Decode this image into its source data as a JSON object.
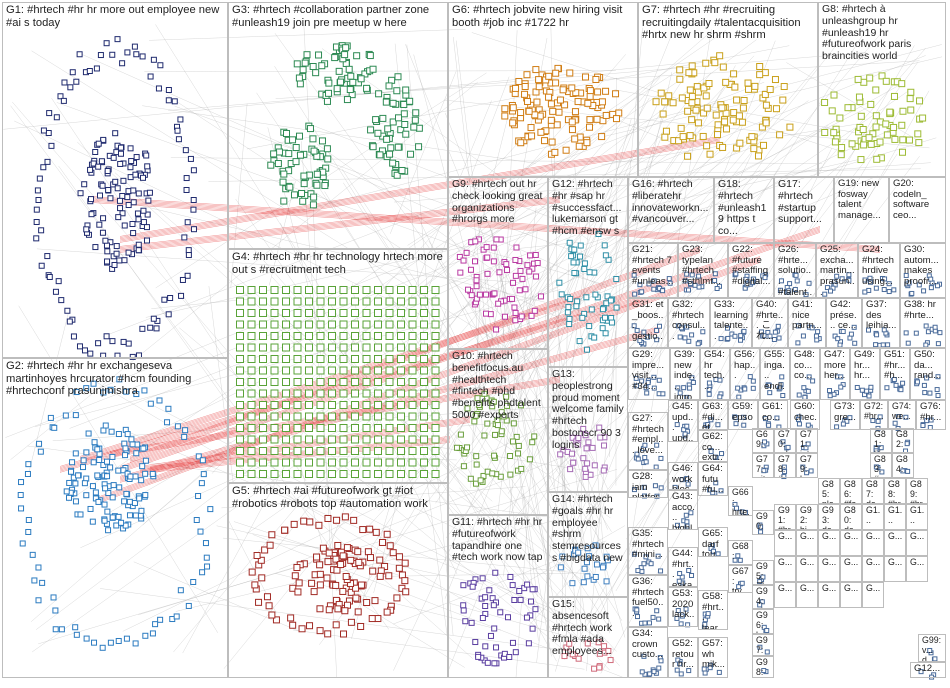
{
  "colors": {
    "G1": "#1f2a6e",
    "G2": "#2b7bc0",
    "G3": "#2d8a53",
    "G4": "#5aa338",
    "G5": "#a12a24",
    "G6": "#d07d14",
    "G7": "#c9a01a",
    "G8": "#9dbb34",
    "G9": "#b93aa2",
    "G10": "#6a9e3c",
    "G11": "#5a3ea0",
    "G12": "#2f8fa6",
    "G13": "#a56bb5",
    "G14": "#3f7fbf",
    "G15": "#d06a7a",
    "edge": "#9a9a9a",
    "bridge": "#e01010"
  },
  "groups": [
    {
      "id": "G1",
      "label": "G1: #hrtech #hr hr more out employee new #ai s today"
    },
    {
      "id": "G2",
      "label": "G2: #hrtech #hr hr exchangeseva martinhoyes hrcurator #hcm founding #hrtechconf prasunjmishra"
    },
    {
      "id": "G3",
      "label": "G3: #hrtech #collaboration partner zone #unleash19 join pre meetup w here"
    },
    {
      "id": "G4",
      "label": "G4: #hrtech #hr hr technology hrtech more out s #recruitment tech"
    },
    {
      "id": "G5",
      "label": "G5: #hrtech #ai #futureofwork gt #iot #robotics #robots top #automation work"
    },
    {
      "id": "G6",
      "label": "G6: #hrtech jobvite new hiring visit booth #job inc #1722 hr"
    },
    {
      "id": "G7",
      "label": "G7: #hrtech #hr #recruiting recruitingdaily #talentacquisition #hrtx new hr shrm #shrm"
    },
    {
      "id": "G8",
      "label": "G8: #hrtech à unleashgroup hr #unleash19 hr #futureofwork paris braincities world"
    },
    {
      "id": "G9",
      "label": "G9: #hrtech out hr check looking great organizations #hrorgs more"
    },
    {
      "id": "G10",
      "label": "G10: #hrtech benefitfocus.au #healthtech #fintech #phd #benefits phdtalent 5000 #experts"
    },
    {
      "id": "G11",
      "label": "G11: #hrtech #hr hr #futureofwork tapandhire one #tech work now tap"
    },
    {
      "id": "G12",
      "label": "G12: #hrtech #hr #sap hr #successfact... lukemarson gt #hcm #ensw s"
    },
    {
      "id": "G13",
      "label": "G13: peoplestrong proud moment welcome family #hrtech bostonscr 90 3 logins"
    },
    {
      "id": "G14",
      "label": "G14: #hrtech #goals #hr hr employee #shrm stemresources s #bigdata new"
    },
    {
      "id": "G15",
      "label": "G15: absencesoft #hrtech work #fmla #ada employees..."
    },
    {
      "id": "G16",
      "label": "G16: #hrtech #liberatehr innovateworkn... #vancouver..."
    },
    {
      "id": "G17",
      "label": "G17: #hrtech #startup support..."
    },
    {
      "id": "G18",
      "label": "G18: #hrtech #unleash19 https t co..."
    },
    {
      "id": "G19",
      "label": "G19: new fosway talent manage..."
    },
    {
      "id": "G20",
      "label": "G20: codeln_ software ceo..."
    },
    {
      "id": "G21",
      "label": "G21: #hrtech 7 events #unleas..."
    },
    {
      "id": "G22",
      "label": "G22: #future #staffing #digital..."
    },
    {
      "id": "G23",
      "label": "G23: typelan #hrtech #sthlmt..."
    },
    {
      "id": "G24",
      "label": "G24: #hrtech hrdive using..."
    },
    {
      "id": "G25",
      "label": "G25: excha... martin... prasun..."
    },
    {
      "id": "G26",
      "label": "G26: #hrte... solutio... #talent..."
    },
    {
      "id": "G27",
      "label": "G27: #hrtech #empl... love..."
    },
    {
      "id": "G28",
      "label": "G28: iam platfor... curate..."
    },
    {
      "id": "G29",
      "label": "G29: impre... visit... #34..."
    },
    {
      "id": "G30",
      "label": "G30: autom... makes proofr..."
    },
    {
      "id": "G31",
      "label": "G31: et _boos... gestio..."
    },
    {
      "id": "G32",
      "label": "G32: #hrtech consul..."
    },
    {
      "id": "G33",
      "label": "G33: learning talente..."
    },
    {
      "id": "G34",
      "label": "G34: crown custo..."
    },
    {
      "id": "G35",
      "label": "G35: #hrtech #mini..."
    },
    {
      "id": "G36",
      "label": "G36: #hrtech fuel50..."
    },
    {
      "id": "G37",
      "label": "G37: des leihia..."
    },
    {
      "id": "G38",
      "label": "G38: hr #hrte..."
    },
    {
      "id": "G39",
      "label": "G39: new inde... inno..."
    },
    {
      "id": "G40",
      "label": "G40: #hrte... これ..."
    },
    {
      "id": "G41",
      "label": "G41: nice partn..."
    },
    {
      "id": "G42",
      "label": "G42: prése... ce..."
    },
    {
      "id": "G43",
      "label": "G43: acco... highl..."
    },
    {
      "id": "G44",
      "label": "G44: #hrt... eska..."
    },
    {
      "id": "G45",
      "label": "G45: upd... upd..."
    },
    {
      "id": "G46",
      "label": "G46: work bloc..."
    },
    {
      "id": "G47",
      "label": "G47: more her..."
    },
    {
      "id": "G48",
      "label": "G48: co... co..."
    },
    {
      "id": "G49",
      "label": "G49: hr... hr..."
    },
    {
      "id": "G50",
      "label": "G50: da... rand..."
    },
    {
      "id": "G51",
      "label": "G51: #hr... #h..."
    },
    {
      "id": "G52",
      "label": "G52: retour hr..."
    },
    {
      "id": "G53",
      "label": "G53: 2020 lack..."
    },
    {
      "id": "G54",
      "label": "G54: hr tech..."
    },
    {
      "id": "G55",
      "label": "G55: inga... endl..."
    },
    {
      "id": "G56",
      "label": "G56: hap..."
    },
    {
      "id": "G57",
      "label": "G57: wh mik..."
    },
    {
      "id": "G58",
      "label": "G58: #hrt... lear..."
    },
    {
      "id": "G59",
      "label": "G59: epso..."
    },
    {
      "id": "G60",
      "label": "G60: chec..."
    },
    {
      "id": "G61",
      "label": "G61: co..."
    },
    {
      "id": "G62",
      "label": "G62: co... extr..."
    },
    {
      "id": "G63",
      "label": "G63: #di... et..."
    },
    {
      "id": "G64",
      "label": "G64: futu #fu..."
    },
    {
      "id": "G65",
      "label": "G65: darf tou..."
    },
    {
      "id": "G66",
      "label": "G66: hrte... (人..."
    },
    {
      "id": "G67",
      "label": "G67: try..."
    },
    {
      "id": "G68",
      "label": "G68: se..."
    },
    {
      "id": "G69",
      "label": "G69: ryo..."
    },
    {
      "id": "G70",
      "label": "G70: ed..."
    },
    {
      "id": "G71",
      "label": "G71: int..."
    },
    {
      "id": "G72",
      "label": "G72: #hr..."
    },
    {
      "id": "G73",
      "label": "G73: gre..."
    },
    {
      "id": "G74",
      "label": "G74: we..."
    },
    {
      "id": "G75",
      "label": "G75: #hr..."
    },
    {
      "id": "G76",
      "label": "G76: #hr..."
    },
    {
      "id": "G77",
      "label": "G77: ait..."
    },
    {
      "id": "G78",
      "label": "G78: #re..."
    },
    {
      "id": "G79",
      "label": "G79: hr..."
    },
    {
      "id": "G80",
      "label": "G80: da..."
    },
    {
      "id": "G81",
      "label": "G81: life..."
    },
    {
      "id": "G82",
      "label": "G82: ex..."
    },
    {
      "id": "G83",
      "label": "G83: #v..."
    },
    {
      "id": "G84",
      "label": "G84: ve..."
    },
    {
      "id": "G85",
      "label": "G85: pla..."
    },
    {
      "id": "G86",
      "label": "G86: #fa..."
    },
    {
      "id": "G87",
      "label": "G87: da..."
    },
    {
      "id": "G88",
      "label": "G88: #hrt..."
    },
    {
      "id": "G89",
      "label": "G89: #hrt..."
    },
    {
      "id": "G90",
      "label": "G90: re..."
    },
    {
      "id": "G91",
      "label": "G91: #hr..."
    },
    {
      "id": "G92",
      "label": "G92: bi..."
    },
    {
      "id": "G93",
      "label": "G93: da..."
    },
    {
      "id": "G94",
      "label": "G94: pin..."
    },
    {
      "id": "G95",
      "label": "G95: 采..."
    },
    {
      "id": "G96",
      "label": "G96: hr..."
    },
    {
      "id": "G97",
      "label": "G97: #re..."
    },
    {
      "id": "G98",
      "label": "G98: ib..."
    },
    {
      "id": "G99",
      "label": "G99: v... d..."
    },
    {
      "id": "G100",
      "label": "G1..."
    },
    {
      "id": "G101",
      "label": "G1..."
    },
    {
      "id": "G102",
      "label": "G1..."
    },
    {
      "id": "G103",
      "label": "G..."
    },
    {
      "id": "G104",
      "label": "G..."
    },
    {
      "id": "G105",
      "label": "G..."
    },
    {
      "id": "G106",
      "label": "G..."
    },
    {
      "id": "G107",
      "label": "G..."
    },
    {
      "id": "G108",
      "label": "G..."
    },
    {
      "id": "G109",
      "label": "G..."
    },
    {
      "id": "G110",
      "label": "G..."
    },
    {
      "id": "G111",
      "label": "G..."
    },
    {
      "id": "G112",
      "label": "G..."
    },
    {
      "id": "G113",
      "label": "G..."
    },
    {
      "id": "G114",
      "label": "G..."
    },
    {
      "id": "G115",
      "label": "G..."
    },
    {
      "id": "G116",
      "label": "G..."
    },
    {
      "id": "G117",
      "label": "G..."
    },
    {
      "id": "G118",
      "label": "G..."
    },
    {
      "id": "G119",
      "label": "G..."
    },
    {
      "id": "G120",
      "label": "G..."
    },
    {
      "id": "G121",
      "label": "G..."
    },
    {
      "id": "G122",
      "label": "G12..."
    }
  ]
}
